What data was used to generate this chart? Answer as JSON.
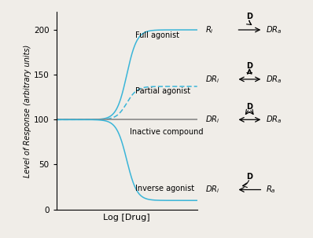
{
  "xlabel": "Log [Drug]",
  "ylabel": "Level of Response (arbitrary units)",
  "ylim": [
    0,
    220
  ],
  "xlim": [
    -5,
    5
  ],
  "yticks": [
    0,
    50,
    100,
    150,
    200
  ],
  "curve_color": "#3ab5d8",
  "inactive_color": "#808080",
  "background_color": "#f0ede8",
  "full_max": 200,
  "partial_max": 137,
  "inverse_min": 10,
  "baseline": 100,
  "ec50": 0,
  "hill": 1.2
}
